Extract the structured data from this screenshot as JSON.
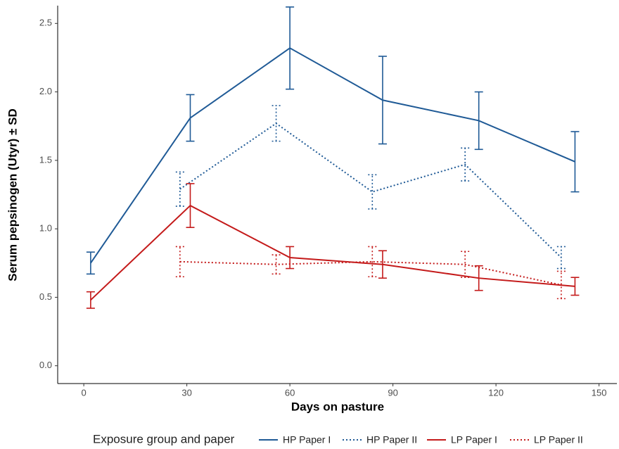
{
  "chart_data": {
    "type": "line",
    "xlabel": "Days on pasture",
    "ylabel": "Serum pepsinogen (Utyr) ± SD",
    "legend_title": "Exposure group and paper",
    "legend_position": "bottom",
    "grid": false,
    "xlim": [
      -7.6,
      155.2
    ],
    "ylim": [
      -0.13,
      2.63
    ],
    "xticks": [
      0,
      30,
      60,
      90,
      120,
      150
    ],
    "yticks": [
      {
        "value": 0,
        "label": "0.0"
      },
      0.5,
      {
        "value": 1,
        "label": "1.0"
      },
      1.5,
      {
        "value": 2,
        "label": "2.0"
      },
      2.5
    ],
    "series": [
      {
        "name": "HP Paper I",
        "color": "#1f5a96",
        "linestyle": "solid",
        "x": [
          2,
          31,
          60,
          87,
          115,
          143
        ],
        "values": [
          0.75,
          1.81,
          2.32,
          1.94,
          1.79,
          1.49
        ],
        "errors": [
          0.08,
          0.17,
          0.3,
          0.32,
          0.21,
          0.22
        ]
      },
      {
        "name": "HP Paper II",
        "color": "#1f5a96",
        "linestyle": "dotted",
        "x": [
          28,
          56,
          84,
          111,
          139
        ],
        "values": [
          1.29,
          1.77,
          1.27,
          1.47,
          0.79
        ],
        "errors": [
          0.125,
          0.13,
          0.125,
          0.12,
          0.08
        ]
      },
      {
        "name": "LP Paper I",
        "color": "#c41a1a",
        "linestyle": "solid",
        "x": [
          2,
          31,
          60,
          87,
          115,
          143
        ],
        "values": [
          0.48,
          1.17,
          0.79,
          0.74,
          0.64,
          0.58
        ],
        "errors": [
          0.06,
          0.16,
          0.08,
          0.1,
          0.09,
          0.065
        ]
      },
      {
        "name": "LP Paper II",
        "color": "#c41a1a",
        "linestyle": "dotted",
        "x": [
          28,
          56,
          84,
          111,
          139
        ],
        "values": [
          0.76,
          0.74,
          0.76,
          0.74,
          0.59
        ],
        "errors": [
          0.11,
          0.07,
          0.11,
          0.095,
          0.1
        ]
      }
    ]
  }
}
